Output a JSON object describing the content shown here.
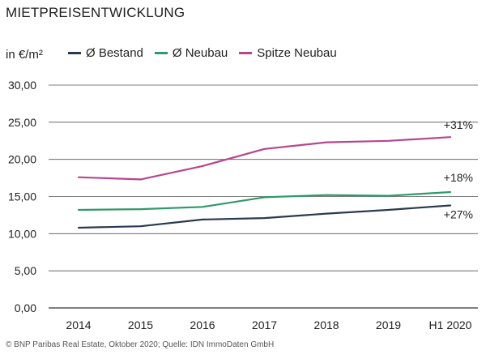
{
  "chart_data": {
    "type": "line",
    "title": "MIETPREISENTWICKLUNG",
    "ylabel": "in €/m²",
    "xlabel": "",
    "categories": [
      "2014",
      "2015",
      "2016",
      "2017",
      "2018",
      "2019",
      "H1 2020"
    ],
    "ylim": [
      0,
      30
    ],
    "yticks": [
      0,
      5,
      10,
      15,
      20,
      25,
      30
    ],
    "ytick_labels": [
      "0,00",
      "5,00",
      "10,00",
      "15,00",
      "20,00",
      "25,00",
      "30,00"
    ],
    "grid": true,
    "legend_position": "top",
    "series": [
      {
        "name": "Ø Bestand",
        "color": "#2b3a4f",
        "change_label": "+27%",
        "values": [
          10.8,
          11.0,
          11.9,
          12.1,
          12.7,
          13.2,
          13.8
        ]
      },
      {
        "name": "Ø Neubau",
        "color": "#2e9a6b",
        "change_label": "+18%",
        "values": [
          13.2,
          13.3,
          13.6,
          14.9,
          15.2,
          15.1,
          15.6
        ]
      },
      {
        "name": "Spitze Neubau",
        "color": "#b8468d",
        "change_label": "+31%",
        "values": [
          17.6,
          17.3,
          19.1,
          21.4,
          22.3,
          22.5,
          23.0
        ]
      }
    ],
    "source": "© BNP Paribas Real Estate, Oktober 2020; Quelle: IDN ImmoDaten GmbH"
  }
}
